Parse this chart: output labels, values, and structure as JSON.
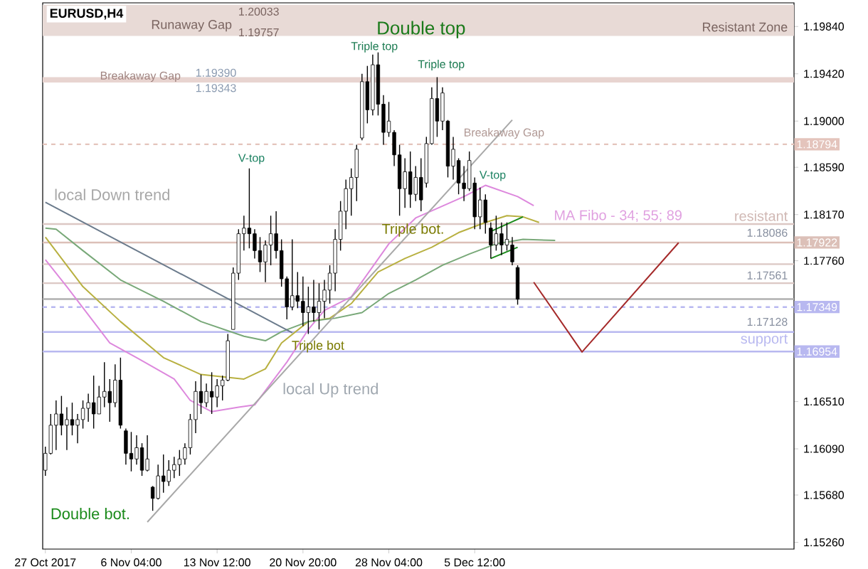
{
  "chart_data": {
    "type": "candlestick",
    "title": "EURUSD,H4",
    "color": "#000000",
    "categories": [
      "27 Oct 2017",
      null,
      null,
      null,
      null,
      null,
      null,
      null,
      null,
      null,
      null,
      null,
      null,
      null,
      null,
      null,
      "6 Nov 04:00",
      null,
      null,
      null,
      null,
      null,
      null,
      null,
      null,
      null,
      null,
      null,
      null,
      null,
      null,
      null,
      "13 Nov 12:00",
      null,
      null,
      null,
      null,
      null,
      null,
      null,
      null,
      null,
      null,
      null,
      null,
      null,
      null,
      null,
      "20 Nov 20:00",
      null,
      null,
      null,
      null,
      null,
      null,
      null,
      null,
      null,
      null,
      null,
      null,
      null,
      null,
      null,
      "28 Nov 04:00",
      null,
      null,
      null,
      null,
      null,
      null,
      null,
      null,
      null,
      null,
      null,
      null,
      null,
      null,
      null,
      "5 Dec 12:00",
      null,
      null,
      null,
      null,
      null,
      null,
      null,
      null,
      null,
      null,
      null,
      null,
      null,
      null,
      null,
      null,
      null,
      null,
      null,
      null,
      null,
      null,
      null,
      null,
      null,
      null,
      null,
      null,
      null,
      null,
      null,
      null,
      null,
      null,
      null,
      null,
      null,
      null,
      null,
      null,
      null,
      null,
      null,
      null,
      null,
      null,
      null,
      null,
      null,
      null,
      null,
      null,
      null,
      null,
      null,
      null,
      null,
      null,
      null
    ],
    "ohlc": [
      [
        1.159,
        1.1611,
        1.1585,
        1.1605
      ],
      [
        1.1605,
        1.164,
        1.1604,
        1.163
      ],
      [
        1.163,
        1.1652,
        1.1608,
        1.164
      ],
      [
        1.164,
        1.1656,
        1.1621,
        1.163
      ],
      [
        1.163,
        1.1646,
        1.1608,
        1.1635
      ],
      [
        1.1635,
        1.165,
        1.1621,
        1.163
      ],
      [
        1.163,
        1.164,
        1.1614,
        1.1635
      ],
      [
        1.1635,
        1.1652,
        1.1627,
        1.1645
      ],
      [
        1.1645,
        1.1658,
        1.1633,
        1.165
      ],
      [
        1.165,
        1.1674,
        1.1627,
        1.164
      ],
      [
        1.164,
        1.1665,
        1.164,
        1.1655
      ],
      [
        1.1655,
        1.1686,
        1.1646,
        1.166
      ],
      [
        1.166,
        1.1671,
        1.1633,
        1.165
      ],
      [
        1.165,
        1.1684,
        1.1646,
        1.167
      ],
      [
        1.167,
        1.169,
        1.1627,
        1.163
      ],
      [
        1.1625,
        1.1627,
        1.1595,
        1.1605
      ],
      [
        1.1605,
        1.1624,
        1.1589,
        1.16
      ],
      [
        1.16,
        1.1621,
        1.1595,
        1.161
      ],
      [
        1.161,
        1.1614,
        1.1585,
        1.159
      ],
      [
        1.159,
        1.1621,
        1.1589,
        1.16
      ],
      [
        1.1575,
        1.1576,
        1.1554,
        1.1565
      ],
      [
        1.1565,
        1.1595,
        1.1564,
        1.1585
      ],
      [
        1.1585,
        1.1604,
        1.157,
        1.158
      ],
      [
        1.158,
        1.1599,
        1.1576,
        1.159
      ],
      [
        1.159,
        1.1602,
        1.1583,
        1.1595
      ],
      [
        1.1595,
        1.1608,
        1.1585,
        1.16
      ],
      [
        1.16,
        1.1614,
        1.1595,
        1.161
      ],
      [
        1.161,
        1.164,
        1.1604,
        1.1635
      ],
      [
        1.1635,
        1.1669,
        1.1623,
        1.166
      ],
      [
        1.166,
        1.1675,
        1.164,
        1.165
      ],
      [
        1.165,
        1.1667,
        1.1646,
        1.166
      ],
      [
        1.166,
        1.1677,
        1.164,
        1.1655
      ],
      [
        1.1655,
        1.1671,
        1.1646,
        1.1665
      ],
      [
        1.1665,
        1.1674,
        1.1652,
        1.167
      ],
      [
        1.167,
        1.1711,
        1.1669,
        1.1705
      ],
      [
        1.1715,
        1.177,
        1.1715,
        1.1765
      ],
      [
        1.1765,
        1.1804,
        1.1759,
        1.18
      ],
      [
        1.18,
        1.1816,
        1.1785,
        1.1805
      ],
      [
        1.1805,
        1.1858,
        1.1787,
        1.18
      ],
      [
        1.18,
        1.1804,
        1.1778,
        1.1785
      ],
      [
        1.1785,
        1.1797,
        1.1766,
        1.1775
      ],
      [
        1.1775,
        1.1794,
        1.1757,
        1.179
      ],
      [
        1.179,
        1.1816,
        1.1772,
        1.18
      ],
      [
        1.18,
        1.182,
        1.1778,
        1.1785
      ],
      [
        1.1785,
        1.1795,
        1.1753,
        1.176
      ],
      [
        1.176,
        1.1762,
        1.1724,
        1.1735
      ],
      [
        1.1735,
        1.1795,
        1.1732,
        1.1745
      ],
      [
        1.1745,
        1.1766,
        1.1734,
        1.174
      ],
      [
        1.174,
        1.1762,
        1.1718,
        1.173
      ],
      [
        1.173,
        1.1753,
        1.1711,
        1.1735
      ],
      [
        1.1735,
        1.1759,
        1.1722,
        1.173
      ],
      [
        1.173,
        1.1756,
        1.1715,
        1.174
      ],
      [
        1.174,
        1.1759,
        1.1725,
        1.175
      ],
      [
        1.175,
        1.1772,
        1.1738,
        1.1765
      ],
      [
        1.1765,
        1.1804,
        1.1749,
        1.1795
      ],
      [
        1.1795,
        1.1829,
        1.1785,
        1.182
      ],
      [
        1.182,
        1.1848,
        1.1804,
        1.184
      ],
      [
        1.184,
        1.1858,
        1.1816,
        1.185
      ],
      [
        1.185,
        1.1879,
        1.1829,
        1.1875
      ],
      [
        1.1885,
        1.1942,
        1.1883,
        1.1935
      ],
      [
        1.1935,
        1.1949,
        1.1898,
        1.191
      ],
      [
        1.191,
        1.1959,
        1.1905,
        1.195
      ],
      [
        1.195,
        1.1961,
        1.1905,
        1.1915
      ],
      [
        1.1915,
        1.1923,
        1.1879,
        1.189
      ],
      [
        1.189,
        1.1917,
        1.1886,
        1.19
      ],
      [
        1.189,
        1.1892,
        1.186,
        1.187
      ],
      [
        1.187,
        1.1879,
        1.1816,
        1.184
      ],
      [
        1.184,
        1.1867,
        1.1823,
        1.1855
      ],
      [
        1.1855,
        1.1873,
        1.1823,
        1.1835
      ],
      [
        1.1835,
        1.186,
        1.1829,
        1.185
      ],
      [
        1.185,
        1.1867,
        1.182,
        1.183
      ],
      [
        1.1845,
        1.1886,
        1.1841,
        1.188
      ],
      [
        1.188,
        1.193,
        1.1879,
        1.192
      ],
      [
        1.192,
        1.1939,
        1.1886,
        1.19
      ],
      [
        1.19,
        1.193,
        1.1892,
        1.1925
      ],
      [
        1.19,
        1.1901,
        1.185,
        1.186
      ],
      [
        1.186,
        1.1886,
        1.1848,
        1.1875
      ],
      [
        1.1865,
        1.1867,
        1.1835,
        1.1845
      ],
      [
        1.1845,
        1.186,
        1.1829,
        1.184
      ],
      [
        1.184,
        1.1873,
        1.1838,
        1.1865
      ],
      [
        1.1845,
        1.185,
        1.1804,
        1.1815
      ],
      [
        1.1815,
        1.1841,
        1.1804,
        1.183
      ],
      [
        1.183,
        1.1835,
        1.18,
        1.181
      ],
      [
        1.1805,
        1.181,
        1.1778,
        1.179
      ],
      [
        1.179,
        1.1816,
        1.1785,
        1.18
      ],
      [
        1.18,
        1.181,
        1.1781,
        1.179
      ],
      [
        1.179,
        1.181,
        1.1785,
        1.1795
      ],
      [
        1.179,
        1.1797,
        1.1772,
        1.1775
      ],
      [
        1.177,
        1.1772,
        1.1737,
        1.1742
      ],
      null,
      null,
      null,
      null,
      null,
      null,
      null,
      null,
      null,
      null,
      null,
      null,
      null,
      null,
      null,
      null,
      null,
      null,
      null,
      null,
      null,
      null,
      null,
      null,
      null,
      null,
      null,
      null,
      null,
      null,
      null,
      null,
      null,
      null,
      null,
      null,
      null,
      null,
      null,
      null,
      null,
      null,
      null,
      null,
      null,
      null,
      null,
      null,
      null,
      null,
      null
    ],
    "series": [
      {
        "type": "line",
        "color": "#dd88dd",
        "values": [
          1.1777,
          null,
          null,
          null,
          1.1753,
          null,
          null,
          null,
          null,
          null,
          null,
          null,
          1.1703,
          null,
          null,
          null,
          null,
          1.169,
          null,
          null,
          null,
          null,
          null,
          null,
          1.1671,
          null,
          null,
          1.1652,
          null,
          null,
          null,
          1.1642,
          null,
          null,
          null,
          null,
          1.1646,
          null,
          null,
          1.1648,
          null,
          null,
          null,
          null,
          null,
          1.1686,
          null,
          null,
          null,
          1.1715,
          null,
          null,
          1.1732,
          null,
          null,
          null,
          null,
          1.1744,
          null,
          null,
          null,
          null,
          null,
          null,
          1.1791,
          null,
          null,
          null,
          null,
          1.1814,
          null,
          null,
          null,
          null,
          null,
          null,
          null,
          null,
          1.1833,
          null,
          null,
          null,
          1.1843,
          null,
          null,
          null,
          null,
          null,
          1.1833,
          null,
          null,
          1.1825,
          null,
          null,
          null,
          null,
          null,
          null,
          null,
          null,
          null,
          null,
          null,
          null,
          null,
          null,
          null,
          null,
          null,
          null,
          null,
          null,
          null,
          null,
          null,
          null,
          null,
          null,
          null,
          null,
          null,
          null,
          null,
          null,
          null,
          null,
          null,
          null,
          null,
          null,
          null,
          null,
          null,
          null,
          null,
          null,
          null,
          null,
          null,
          null
        ]
      },
      {
        "type": "line",
        "color": "#b8b040",
        "values": [
          1.1797,
          null,
          null,
          null,
          null,
          null,
          null,
          1.1753,
          null,
          null,
          null,
          null,
          null,
          null,
          1.1722,
          null,
          null,
          null,
          null,
          null,
          null,
          null,
          1.169,
          null,
          null,
          null,
          null,
          null,
          null,
          1.1675,
          null,
          null,
          null,
          null,
          null,
          null,
          null,
          1.1671,
          null,
          null,
          null,
          1.168,
          null,
          null,
          1.1703,
          null,
          null,
          null,
          null,
          1.1722,
          null,
          null,
          null,
          1.1725,
          null,
          null,
          null,
          1.1738,
          null,
          null,
          null,
          null,
          1.1766,
          null,
          null,
          null,
          null,
          1.1778,
          null,
          null,
          null,
          null,
          1.1788,
          null,
          null,
          null,
          null,
          1.1801,
          null,
          null,
          null,
          null,
          1.181,
          null,
          null,
          null,
          1.1816,
          null,
          null,
          1.1815,
          null,
          null,
          1.181,
          null,
          null,
          null,
          null,
          null,
          null,
          null,
          null,
          null,
          null,
          null,
          null,
          null,
          null,
          null,
          null,
          null,
          null,
          null,
          null,
          null,
          null,
          null,
          null,
          null,
          null,
          null,
          null,
          null,
          null,
          null,
          null,
          null,
          null,
          null,
          null,
          null,
          null,
          null,
          null,
          null,
          null,
          null,
          null,
          null,
          null,
          null
        ]
      },
      {
        "type": "line",
        "color": "#78a878",
        "values": [
          1.1805,
          null,
          1.1804,
          null,
          null,
          null,
          null,
          1.1785,
          null,
          null,
          null,
          null,
          null,
          null,
          1.1759,
          null,
          null,
          null,
          null,
          null,
          null,
          null,
          1.174,
          null,
          null,
          null,
          null,
          null,
          null,
          1.1722,
          null,
          null,
          null,
          null,
          null,
          null,
          null,
          1.1709,
          null,
          null,
          null,
          1.1705,
          null,
          null,
          1.1713,
          null,
          null,
          null,
          null,
          1.1722,
          null,
          null,
          null,
          null,
          1.1725,
          null,
          null,
          null,
          null,
          1.173,
          null,
          null,
          null,
          null,
          1.1747,
          null,
          null,
          null,
          null,
          1.1759,
          null,
          null,
          null,
          null,
          1.1772,
          null,
          null,
          null,
          null,
          1.1782,
          null,
          null,
          null,
          null,
          1.1791,
          null,
          null,
          null,
          null,
          1.1795,
          null,
          null,
          null,
          null,
          null,
          1.1794,
          null,
          null,
          null,
          null,
          null,
          null,
          null,
          null,
          null,
          null,
          null,
          null,
          null,
          null,
          null,
          null,
          null,
          null,
          null,
          null,
          null,
          null,
          null,
          null,
          null,
          null,
          null,
          null,
          null,
          null,
          null,
          null,
          null,
          null,
          null,
          null,
          null,
          null,
          null,
          null,
          null,
          null,
          null,
          null
        ]
      },
      {
        "type": "line",
        "color": "#6b7b8c",
        "values": [
          1.1828,
          null,
          null,
          null,
          null,
          null,
          null,
          null,
          null,
          null,
          null,
          null,
          null,
          null,
          null,
          null,
          null,
          null,
          null,
          null,
          null,
          null,
          null,
          null,
          null,
          null,
          null,
          null,
          null,
          null,
          null,
          null,
          null,
          null,
          null,
          null,
          null,
          null,
          null,
          null,
          null,
          null,
          null,
          null,
          null,
          null,
          1.1712,
          null,
          null,
          null,
          null,
          null,
          null,
          null,
          null,
          null,
          null,
          null,
          null,
          null,
          null,
          null,
          null,
          null,
          null,
          null,
          null,
          null,
          null,
          null,
          null,
          null,
          null,
          null,
          null,
          null,
          null,
          null,
          null,
          null,
          null,
          null,
          null,
          null,
          null,
          null,
          null,
          null,
          null,
          null,
          null,
          null,
          null,
          null,
          null,
          null,
          null,
          null,
          null,
          null,
          null,
          null,
          null,
          null,
          null,
          null,
          null,
          null,
          null,
          null,
          null,
          null,
          null,
          null,
          null,
          null,
          null,
          null,
          null,
          null,
          null,
          null,
          null,
          null,
          null,
          null,
          null,
          null,
          null,
          null,
          null,
          null,
          null,
          null,
          null,
          null,
          null,
          null,
          null,
          null
        ]
      },
      {
        "type": "line",
        "color": "#a8a8a8",
        "values": [
          null,
          null,
          null,
          null,
          null,
          null,
          null,
          null,
          null,
          null,
          null,
          null,
          null,
          null,
          null,
          null,
          null,
          null,
          null,
          1.1544,
          null,
          null,
          null,
          null,
          null,
          null,
          null,
          null,
          null,
          null,
          null,
          null,
          null,
          null,
          null,
          null,
          null,
          null,
          null,
          null,
          null,
          null,
          null,
          null,
          null,
          null,
          null,
          null,
          null,
          null,
          null,
          null,
          null,
          null,
          null,
          null,
          null,
          null,
          null,
          null,
          null,
          null,
          null,
          null,
          null,
          null,
          null,
          null,
          null,
          null,
          null,
          null,
          null,
          null,
          null,
          null,
          null,
          null,
          null,
          null,
          null,
          null,
          null,
          null,
          null,
          null,
          null,
          1.1901,
          null,
          null,
          null,
          null,
          null,
          null,
          null,
          null,
          null,
          null,
          null,
          null,
          null,
          null,
          null,
          null,
          null,
          null,
          null,
          null,
          null,
          null,
          null,
          null,
          null,
          null,
          null,
          null,
          null,
          null,
          null,
          null,
          null,
          null,
          null,
          null,
          null,
          null,
          null,
          null,
          null,
          null,
          null,
          null,
          null,
          null,
          null,
          null,
          null,
          null,
          null,
          null
        ]
      },
      {
        "type": "line",
        "color": "#a52a2a",
        "values": [
          null,
          null,
          null,
          null,
          null,
          null,
          null,
          null,
          null,
          null,
          null,
          null,
          null,
          null,
          null,
          null,
          null,
          null,
          null,
          null,
          null,
          null,
          null,
          null,
          null,
          null,
          null,
          null,
          null,
          null,
          null,
          null,
          null,
          null,
          null,
          null,
          null,
          null,
          null,
          null,
          null,
          null,
          null,
          null,
          null,
          null,
          null,
          null,
          null,
          null,
          null,
          null,
          null,
          null,
          null,
          null,
          null,
          null,
          null,
          null,
          null,
          null,
          null,
          null,
          null,
          null,
          null,
          null,
          null,
          null,
          null,
          null,
          null,
          null,
          null,
          null,
          null,
          null,
          null,
          null,
          null,
          null,
          null,
          null,
          null,
          null,
          null,
          null,
          null,
          null,
          null,
          1.1757,
          null,
          null,
          null,
          null,
          null,
          null,
          null,
          null,
          1.1695,
          null,
          null,
          null,
          null,
          null,
          null,
          null,
          null,
          null,
          null,
          null,
          null,
          null,
          null,
          null,
          null,
          null,
          1.1792,
          null,
          null,
          null,
          null,
          null,
          null,
          null,
          null,
          null,
          null,
          null,
          null,
          null,
          null,
          null,
          null,
          null,
          null,
          null,
          null,
          null
        ]
      },
      {
        "type": "line",
        "color": "#1a8a1a",
        "values": [
          null,
          null,
          null,
          null,
          null,
          null,
          null,
          null,
          null,
          null,
          null,
          null,
          null,
          null,
          null,
          null,
          null,
          null,
          null,
          null,
          null,
          null,
          null,
          null,
          null,
          null,
          null,
          null,
          null,
          null,
          null,
          null,
          null,
          null,
          null,
          null,
          null,
          null,
          null,
          null,
          null,
          null,
          null,
          null,
          null,
          null,
          null,
          null,
          null,
          null,
          null,
          null,
          null,
          null,
          null,
          null,
          null,
          null,
          null,
          null,
          null,
          null,
          null,
          null,
          null,
          null,
          null,
          null,
          null,
          null,
          null,
          null,
          null,
          null,
          null,
          null,
          null,
          null,
          null,
          null,
          null,
          null,
          null,
          1.1802,
          null,
          null,
          null,
          null,
          null,
          1.1815,
          null,
          null,
          null,
          null,
          null,
          null,
          null,
          null,
          null,
          null,
          null,
          null,
          null,
          null,
          null,
          null,
          null,
          null,
          null,
          null,
          null,
          null,
          null,
          null,
          null,
          null,
          null,
          null,
          null,
          null,
          null,
          null,
          null,
          null,
          null,
          null,
          null,
          null,
          null,
          null,
          null,
          null,
          null,
          null,
          null,
          null,
          null,
          null,
          null,
          null
        ]
      },
      {
        "type": "line",
        "color": "#1a8a1a",
        "values": [
          null,
          null,
          null,
          null,
          null,
          null,
          null,
          null,
          null,
          null,
          null,
          null,
          null,
          null,
          null,
          null,
          null,
          null,
          null,
          null,
          null,
          null,
          null,
          null,
          null,
          null,
          null,
          null,
          null,
          null,
          null,
          null,
          null,
          null,
          null,
          null,
          null,
          null,
          null,
          null,
          null,
          null,
          null,
          null,
          null,
          null,
          null,
          null,
          null,
          null,
          null,
          null,
          null,
          null,
          null,
          null,
          null,
          null,
          null,
          null,
          null,
          null,
          null,
          null,
          null,
          null,
          null,
          null,
          null,
          null,
          null,
          null,
          null,
          null,
          null,
          null,
          null,
          null,
          null,
          null,
          null,
          null,
          null,
          1.1778,
          null,
          null,
          null,
          null,
          1.1788,
          null,
          null,
          null,
          null,
          null,
          null,
          null,
          null,
          null,
          null,
          null,
          null,
          null,
          null,
          null,
          null,
          null,
          null,
          null,
          null,
          null,
          null,
          null,
          null,
          null,
          null,
          null,
          null,
          null,
          null,
          null,
          null,
          null,
          null,
          null,
          null,
          null,
          null,
          null,
          null,
          null,
          null,
          null,
          null,
          null,
          null,
          null,
          null,
          null,
          null,
          null
        ]
      }
    ],
    "ylim": [
      1.152,
      1.2005
    ],
    "yticks": [
      {
        "value": 1.1526,
        "label": "1.15260"
      },
      {
        "value": 1.1568,
        "label": "1.15680"
      },
      {
        "value": 1.1609,
        "label": "1.16090"
      },
      {
        "value": 1.1651,
        "label": "1.16510"
      },
      {
        "value": 1.1776,
        "label": "1.17760"
      },
      {
        "value": 1.1817,
        "label": "1.18170"
      },
      {
        "value": 1.1859,
        "label": "1.18590"
      },
      {
        "value": 1.19,
        "label": "1.19000"
      },
      {
        "value": 1.1942,
        "label": "1.19420"
      },
      {
        "value": 1.1984,
        "label": "1.19840"
      }
    ],
    "bands": [
      {
        "axis": "y",
        "from": 1.19757,
        "to": 1.20033,
        "color": "#e8dad6"
      },
      {
        "axis": "y",
        "from": 1.19343,
        "to": 1.1939,
        "color": "#e8d4d0"
      }
    ],
    "ref_lines": [
      {
        "axis": "y",
        "value": 1.18794,
        "label": "1.18794",
        "color": "#e4c4bc",
        "line_style": "dashed"
      },
      {
        "axis": "y",
        "value": 1.18086,
        "color": "#dcc8c4"
      },
      {
        "axis": "y",
        "value": 1.17922,
        "label": "1.17922",
        "color": "#dcc0b8"
      },
      {
        "axis": "y",
        "value": 1.1773,
        "color": "#dcc8c4"
      },
      {
        "axis": "y",
        "value": 1.17561,
        "color": "#dcc8c4"
      },
      {
        "axis": "y",
        "value": 1.1742,
        "color": "#b0b0b0"
      },
      {
        "axis": "y",
        "value": 1.17349,
        "label": "1.17349",
        "color": "#b8b8f0",
        "line_style": "dashed"
      },
      {
        "axis": "y",
        "value": 1.17128,
        "color": "#b8b8f0"
      },
      {
        "axis": "y",
        "value": 1.16954,
        "label": "1.16954",
        "color": "#b8b8f0"
      }
    ],
    "annotations": [
      "Runaway Gap",
      "1.20033",
      "1.19757",
      "Resistant Zone",
      "Double top",
      "Breakaway Gap",
      "1.19390",
      "1.19343",
      "Triple top",
      "Triple top",
      "Breakaway Gap",
      "V-top",
      "V-top",
      "local Down trend",
      "MA Fibo - 34; 55; 89",
      "resistant",
      "1.18086",
      "Triple bot.",
      "1.17561",
      "1.17128",
      "support",
      "Triple bot",
      "local Up trend",
      "Double bot."
    ]
  }
}
